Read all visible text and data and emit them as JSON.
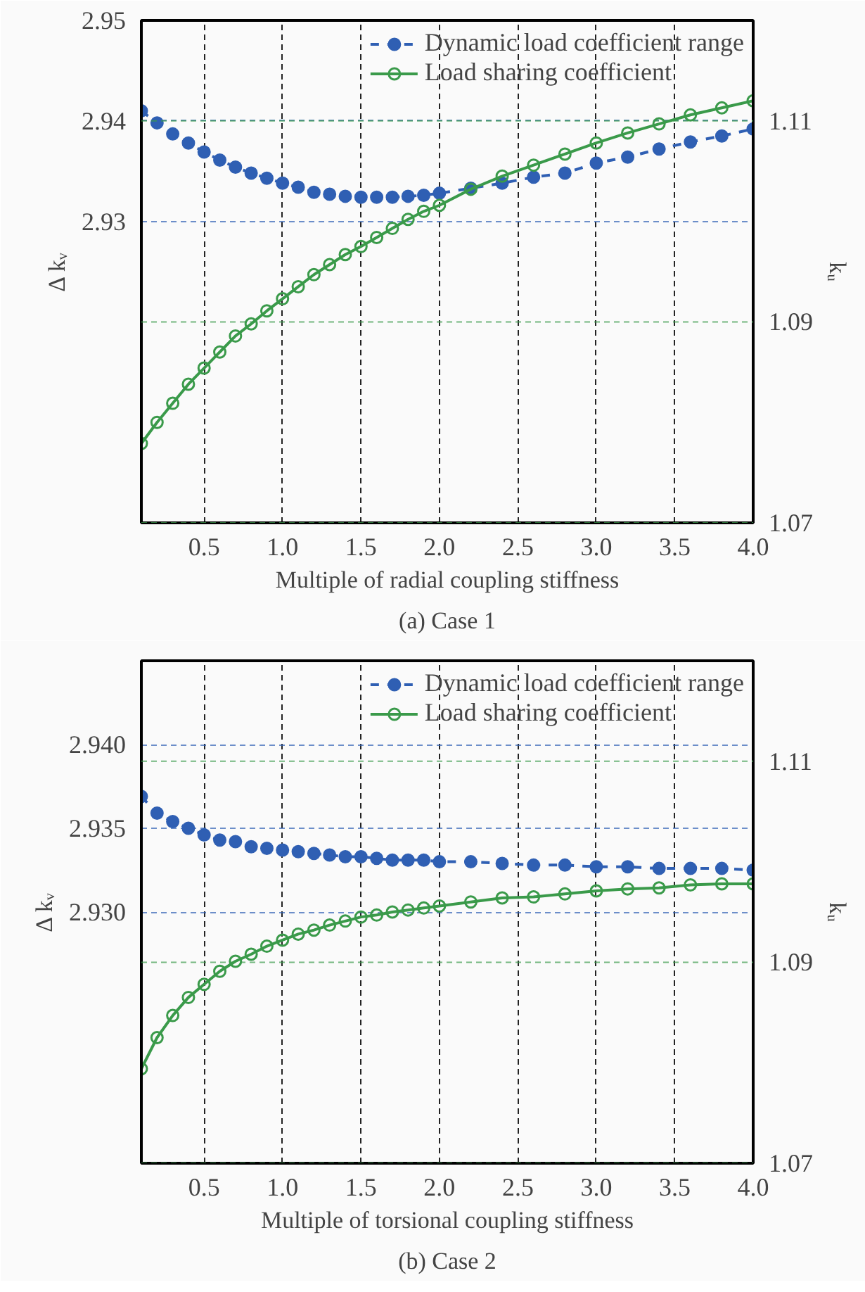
{
  "chart_data": [
    {
      "type": "line",
      "xlabel": "Multiple of radial coupling stiffness",
      "ylabel": "Δ kᵥ",
      "y2label": "kᵤ",
      "annotations": [
        "(a) Case 1"
      ],
      "x": [
        0.1,
        0.2,
        0.3,
        0.4,
        0.5,
        0.6,
        0.7,
        0.8,
        0.9,
        1.0,
        1.1,
        1.2,
        1.3,
        1.4,
        1.5,
        1.6,
        1.7,
        1.8,
        1.9,
        2.0,
        2.2,
        2.4,
        2.6,
        2.8,
        3.0,
        3.2,
        3.4,
        3.6,
        3.8,
        4.0
      ],
      "xlim": [
        0.1,
        4.0
      ],
      "xticks": [
        0.5,
        {
          "value": 1,
          "label": "1.0"
        },
        1.5,
        {
          "value": 2,
          "label": "2.0"
        },
        2.5,
        {
          "value": 3,
          "label": "3.0"
        },
        3.5,
        {
          "value": 4,
          "label": "4.0"
        }
      ],
      "ylim": [
        2.9,
        2.95
      ],
      "yticks": [
        2.93,
        2.94,
        2.95
      ],
      "y2lim": [
        1.07,
        1.12
      ],
      "y2ticks": [
        1.07,
        1.09,
        1.11
      ],
      "grid": true,
      "legend": "top right",
      "series": [
        {
          "name": "Dynamic load coefficient range",
          "color": "#2f5fb3",
          "line_style": "dashed",
          "marker": "circle",
          "values": [
            2.941,
            2.9398,
            2.9387,
            2.9378,
            2.9369,
            2.9361,
            2.9354,
            2.9348,
            2.9343,
            2.9338,
            2.9334,
            2.9329,
            2.9327,
            2.9325,
            2.9324,
            2.9324,
            2.9324,
            2.9325,
            2.9326,
            2.9328,
            2.9333,
            2.9338,
            2.9344,
            2.9348,
            2.9358,
            2.9364,
            2.9372,
            2.9379,
            2.9385,
            2.9392
          ]
        },
        {
          "name": "Load sharing coefficient",
          "color": "#3a9a4a",
          "line_style": "solid",
          "marker": "circle",
          "axis": "y2",
          "values": [
            1.0779,
            1.08,
            1.0819,
            1.0838,
            1.0854,
            1.087,
            1.0886,
            1.0898,
            1.0911,
            1.0923,
            1.0935,
            1.0947,
            1.0957,
            1.0967,
            1.0975,
            1.0984,
            1.0993,
            1.1002,
            1.101,
            1.1016,
            1.1032,
            1.1045,
            1.1056,
            1.1067,
            1.1078,
            1.1088,
            1.1097,
            1.1106,
            1.1113,
            1.112
          ]
        }
      ]
    },
    {
      "type": "line",
      "xlabel": "Multiple of torsional coupling stiffness",
      "ylabel": "Δ kᵥ",
      "y2label": "kᵤ",
      "annotations": [
        "(b) Case 2"
      ],
      "x": [
        0.1,
        0.2,
        0.3,
        0.4,
        0.5,
        0.6,
        0.7,
        0.8,
        0.9,
        1.0,
        1.1,
        1.2,
        1.3,
        1.4,
        1.5,
        1.6,
        1.7,
        1.8,
        1.9,
        2.0,
        2.2,
        2.4,
        2.6,
        2.8,
        3.0,
        3.2,
        3.4,
        3.6,
        3.8,
        4.0
      ],
      "xlim": [
        0.1,
        4.0
      ],
      "xticks": [
        0.5,
        {
          "value": 1,
          "label": "1.0"
        },
        1.5,
        {
          "value": 2,
          "label": "2.0"
        },
        2.5,
        {
          "value": 3,
          "label": "3.0"
        },
        3.5,
        {
          "value": 4,
          "label": "4.0"
        }
      ],
      "ylim": [
        2.915,
        2.945
      ],
      "yticks": [
        {
          "value": 2.93,
          "label": "2.930"
        },
        2.935,
        {
          "value": 2.94,
          "label": "2.940"
        }
      ],
      "y2lim": [
        1.07,
        1.12
      ],
      "y2ticks": [
        1.07,
        1.09,
        1.11
      ],
      "grid": true,
      "legend": "top right",
      "series": [
        {
          "name": "Dynamic load coefficient range",
          "color": "#2f5fb3",
          "line_style": "dashed",
          "marker": "circle",
          "values": [
            2.9369,
            2.9359,
            2.9354,
            2.935,
            2.9346,
            2.9343,
            2.9342,
            2.9339,
            2.9338,
            2.9337,
            2.9336,
            2.9335,
            2.9334,
            2.9333,
            2.9333,
            2.9332,
            2.9331,
            2.9331,
            2.9331,
            2.933,
            2.933,
            2.9329,
            2.9328,
            2.9328,
            2.9327,
            2.9327,
            2.9326,
            2.9326,
            2.9326,
            2.9325
          ]
        },
        {
          "name": "Load sharing coefficient",
          "color": "#3a9a4a",
          "line_style": "solid",
          "marker": "circle",
          "axis": "y2",
          "values": [
            1.0794,
            1.0825,
            1.0847,
            1.0865,
            1.0878,
            1.0891,
            1.0901,
            1.0908,
            1.0916,
            1.0922,
            1.0928,
            1.0932,
            1.0937,
            1.0941,
            1.0945,
            1.0947,
            1.095,
            1.0952,
            1.0954,
            1.0956,
            1.096,
            1.0964,
            1.0965,
            1.0968,
            1.0971,
            1.0973,
            1.0974,
            1.0977,
            1.0978,
            1.0978
          ]
        }
      ]
    }
  ]
}
